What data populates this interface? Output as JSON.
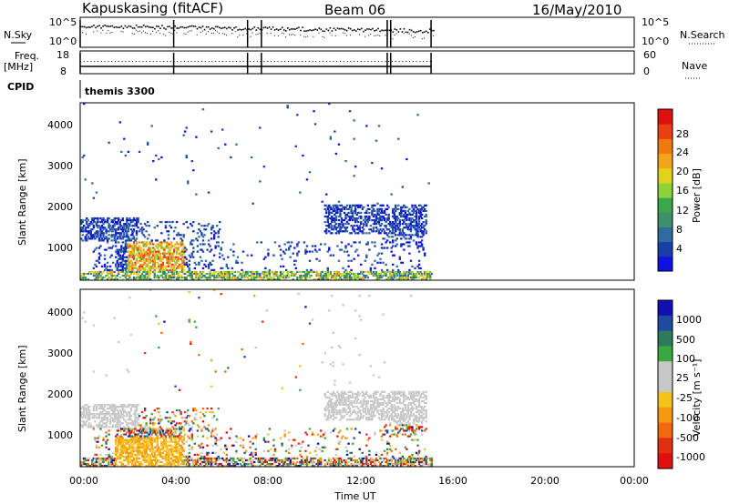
{
  "header": {
    "station": "Kapuskasing (fitACF)",
    "beam": "Beam 06",
    "date": "16/May/2010"
  },
  "strips": {
    "nsky_label": "N.Sky",
    "nsky_ticks": [
      "10^5",
      "10^0"
    ],
    "nsearch_label": "N.Search",
    "freq_label": "Freq.",
    "freq_unit": "[MHz]",
    "freq_ticks": [
      "18",
      "8"
    ],
    "nave_label": "Nave",
    "nave_ticks": [
      "60",
      "0"
    ],
    "cpid_label": "CPID",
    "cpid_value": "themis 3300"
  },
  "chart_data": [
    {
      "type": "heatmap",
      "name": "power",
      "ylabel": "Slant Range [km]",
      "yticks": [
        "4000",
        "3000",
        "2000",
        "1000"
      ],
      "colorbar_label": "Power [dB]",
      "colorbar_ticks": [
        "28",
        "24",
        "20",
        "16",
        "12",
        "8",
        "4"
      ],
      "colors": [
        "#1010e0",
        "#1a3ea8",
        "#2f6aa0",
        "#3f8f6a",
        "#3aa84a",
        "#8cd23a",
        "#e2d21a",
        "#f5a31a",
        "#f07a10",
        "#e84010",
        "#e01010"
      ]
    },
    {
      "type": "heatmap",
      "name": "velocity",
      "ylabel": "Slant Range [km]",
      "yticks": [
        "4000",
        "3000",
        "2000",
        "1000"
      ],
      "colorbar_label": "Velocity [m s⁻¹]",
      "colorbar_ticks": [
        "1000",
        "500",
        "100",
        "25",
        "-25",
        "-100",
        "-500",
        "-1000"
      ],
      "colors": [
        "#1010b0",
        "#1e4aa0",
        "#2e7a5a",
        "#3aa840",
        "#c8c8c8",
        "#c8c8c8",
        "#f5c21a",
        "#f59a10",
        "#f06a10",
        "#e03010",
        "#e01010"
      ]
    }
  ],
  "xaxis": {
    "ticks": [
      "00:00",
      "04:00",
      "08:00",
      "12:00",
      "16:00",
      "20:00",
      "00:00"
    ],
    "label": "Time UT"
  }
}
